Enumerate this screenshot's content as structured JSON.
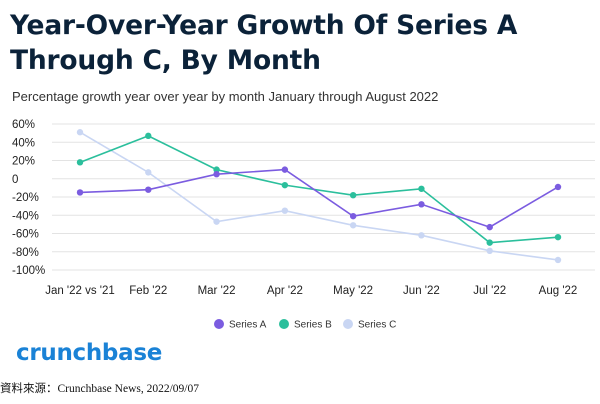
{
  "page": {
    "title": "Year-Over-Year Growth Of Series A Through C, By Month",
    "subtitle": "Percentage growth year over year by month January through August 2022",
    "logo": "crunchbase",
    "source": "資料來源：Crunchbase News, 2022/09/07"
  },
  "chart_data": {
    "type": "line",
    "title": "Year-Over-Year Growth Of Series A Through C, By Month",
    "subtitle": "Percentage growth year over year by month January through August 2022",
    "xlabel": "",
    "ylabel": "",
    "categories": [
      "Jan '22 vs '21",
      "Feb '22",
      "Mar '22",
      "Apr '22",
      "May '22",
      "Jun '22",
      "Jul '22",
      "Aug '22"
    ],
    "ylim": [
      -100,
      60
    ],
    "yticks": [
      60,
      40,
      20,
      0,
      -20,
      -40,
      -60,
      -80,
      -100
    ],
    "ytick_labels": [
      "60%",
      "40%",
      "20%",
      "0",
      "-20%",
      "-40%",
      "-60%",
      "-80%",
      "-100%"
    ],
    "grid": true,
    "legend_position": "bottom",
    "series": [
      {
        "name": "Series A",
        "color": "#7b5ce0",
        "values": [
          -15,
          -12,
          5,
          10,
          -41,
          -28,
          -53,
          -9
        ]
      },
      {
        "name": "Series B",
        "color": "#2bbf9c",
        "values": [
          18,
          47,
          10,
          -7,
          -18,
          -11,
          -70,
          -64
        ]
      },
      {
        "name": "Series C",
        "color": "#c9d6f3",
        "values": [
          51,
          7,
          -47,
          -35,
          -51,
          -62,
          -79,
          -89
        ]
      }
    ]
  }
}
